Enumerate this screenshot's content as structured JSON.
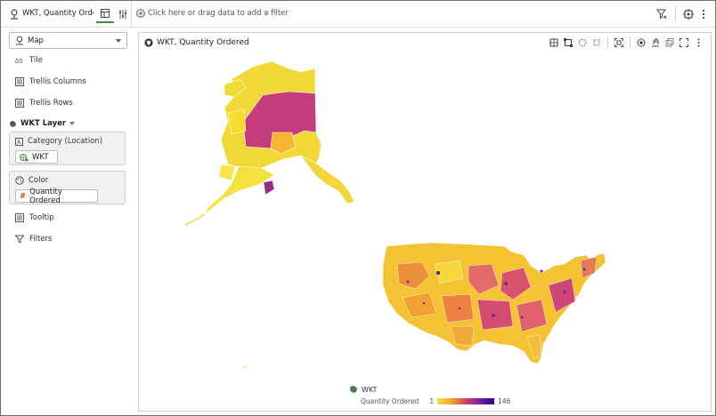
{
  "topbar": {
    "title": "WKT, Quantity Orde...",
    "filter_placeholder": "Click here or drag data to add a filter"
  },
  "left": {
    "viz_type": "Map",
    "items": [
      "Tile",
      "Trellis Columns",
      "Trellis Rows"
    ],
    "layer_label": "WKT Layer",
    "category_label": "Category (Location)",
    "category_value": "WKT",
    "color_label": "Color",
    "color_value": "Quantity Ordered",
    "tooltip_label": "Tooltip",
    "filters_label": "Filters"
  },
  "viz": {
    "title": "WKT, Quantity Ordered",
    "legend_layer": "WKT",
    "legend_measure": "Quantity Ordered",
    "legend_min": "1",
    "legend_max": "146"
  },
  "colors": {
    "accent": "#4a8a4a",
    "low": "#f5e23c",
    "mid": "#f5a623",
    "high": "#c8337a",
    "max": "#2a0a8c"
  }
}
